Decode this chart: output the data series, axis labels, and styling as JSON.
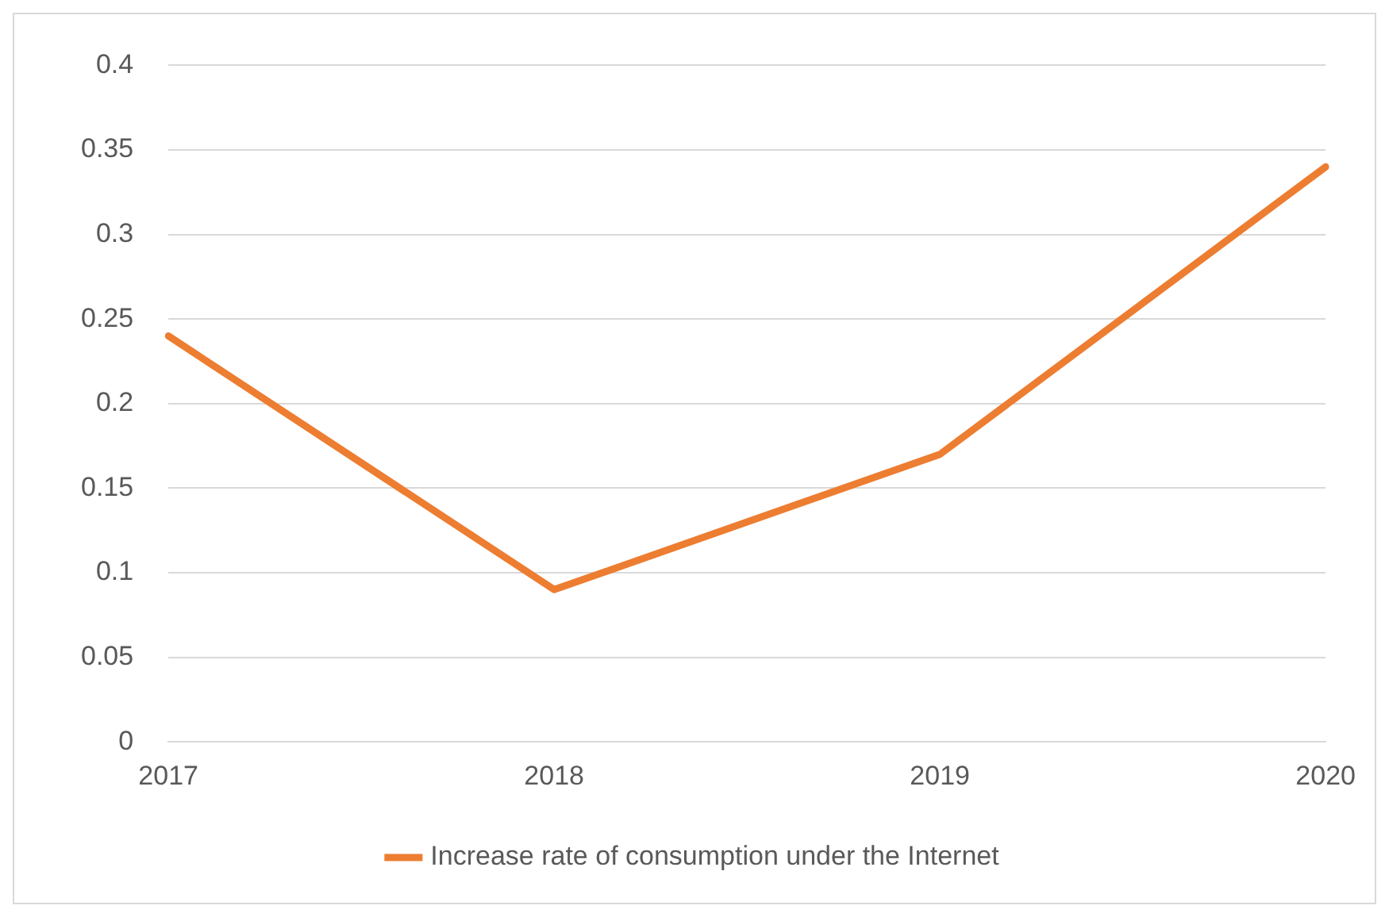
{
  "chart_data": {
    "type": "line",
    "categories": [
      "2017",
      "2018",
      "2019",
      "2020"
    ],
    "series": [
      {
        "name": "Increase rate of consumption under the Internet",
        "color": "#ed7d31",
        "values": [
          0.24,
          0.09,
          0.17,
          0.34
        ]
      }
    ],
    "ylim": [
      0,
      0.4
    ],
    "yticks": [
      0,
      0.05,
      0.1,
      0.15,
      0.2,
      0.25,
      0.3,
      0.35,
      0.4
    ],
    "grid": "y",
    "legend": "bottom",
    "marker": "none",
    "line_style": "solid"
  }
}
